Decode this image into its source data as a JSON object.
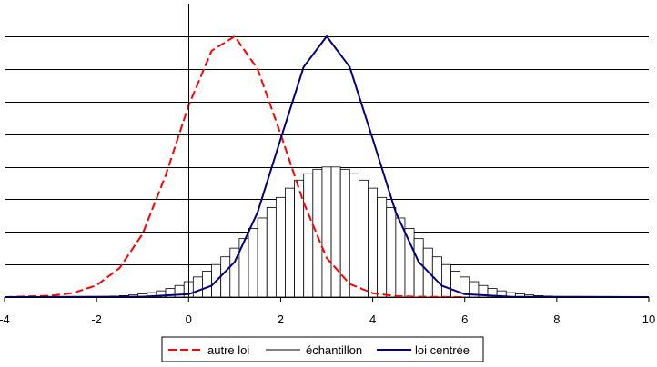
{
  "chart_data": {
    "type": "bar+line",
    "title": "",
    "xlabel": "",
    "ylabel": "",
    "xlim": [
      -4,
      10
    ],
    "x_ticks": [
      -4,
      -2,
      0,
      2,
      4,
      6,
      8,
      10
    ],
    "ylim": [
      0,
      8
    ],
    "y_grid_count": 9,
    "grid": true,
    "legend": {
      "position": "bottom",
      "entries": [
        "autre loi",
        "échantillon",
        "loi centrée"
      ]
    },
    "colors": {
      "autre loi": "#ff0000",
      "échantillon": "#000000",
      "loi centrée": "#000080"
    },
    "histogram": {
      "name": "échantillon",
      "bin_width": 0.2,
      "center": 3.1,
      "sd": 1.5,
      "peak": 4.0,
      "start": -3.0,
      "end": 9.4
    },
    "series": [
      {
        "name": "autre loi",
        "style": "dashed",
        "x": [
          -4,
          -3,
          -2.5,
          -2,
          -1.5,
          -1,
          -0.5,
          0,
          0.5,
          1,
          1.5,
          2,
          2.5,
          3,
          3.5,
          4,
          4.5,
          5,
          6
        ],
        "y": [
          0,
          0.04,
          0.13,
          0.36,
          0.89,
          1.94,
          3.73,
          5.88,
          7.56,
          8.0,
          7.0,
          5.0,
          2.9,
          1.2,
          0.4,
          0.12,
          0.03,
          0.01,
          0
        ]
      },
      {
        "name": "loi centrée",
        "style": "solid",
        "x": [
          -4,
          -1,
          0,
          0.5,
          1,
          1.5,
          2,
          2.5,
          3,
          3.5,
          4,
          4.5,
          5,
          5.5,
          6,
          7,
          10
        ],
        "y": [
          0,
          0.01,
          0.09,
          0.35,
          1.08,
          2.6,
          4.85,
          7.06,
          8.0,
          7.06,
          4.85,
          2.6,
          1.08,
          0.35,
          0.09,
          0.01,
          0
        ]
      }
    ]
  }
}
